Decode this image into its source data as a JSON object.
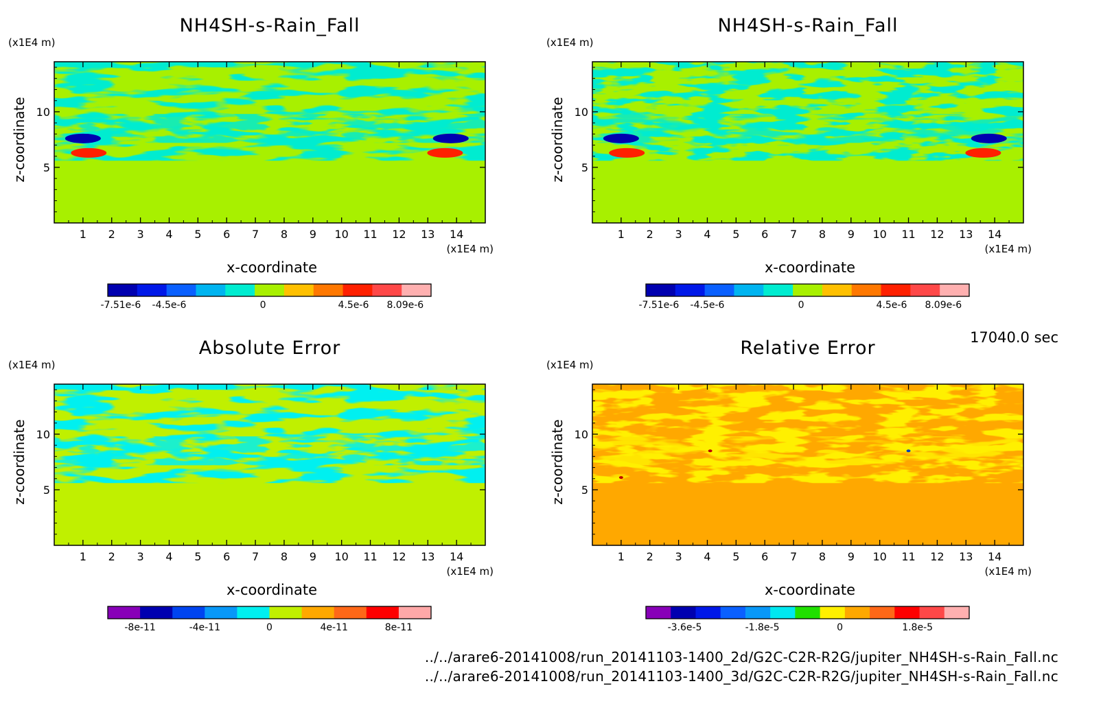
{
  "timestamp": "17040.0 sec",
  "files": [
    "../../arare6-20141008/run_20141103-1400_2d/G2C-C2R-R2G/jupiter_NH4SH-s-Rain_Fall.nc",
    "../../arare6-20141008/run_20141103-1400_3d/G2C-C2R-R2G/jupiter_NH4SH-s-Rain_Fall.nc"
  ],
  "chart_data": [
    {
      "type": "heatmap",
      "title": "NH4SH-s-Rain_Fall",
      "xlabel": "x-coordinate",
      "ylabel": "z-coordinate",
      "x_unit": "(x1E4 m)",
      "z_unit": "(x1E4 m)",
      "xlim": [
        0,
        15
      ],
      "zlim": [
        0,
        14.5
      ],
      "x_ticks": [
        "1",
        "2",
        "3",
        "4",
        "5",
        "6",
        "7",
        "8",
        "9",
        "10",
        "11",
        "12",
        "13",
        "14"
      ],
      "z_ticks": [
        "5",
        "10"
      ],
      "colorbar": {
        "colors": [
          "#0000b0",
          "#0018e8",
          "#0a60ff",
          "#00b4f0",
          "#00ecd0",
          "#a8f000",
          "#ffc000",
          "#ff7800",
          "#ff2000",
          "#ff4848",
          "#ffb0b0"
        ],
        "labels": [
          "-7.51e-6",
          "-4.5e-6",
          "0",
          "4.5e-6",
          "8.09e-6"
        ]
      },
      "field": {
        "background": "#a8f000",
        "bands": "#00ecd0",
        "features": [
          {
            "color": "#0000b0",
            "x": 1.0,
            "z": 7.6
          },
          {
            "color": "#ff2000",
            "x": 1.2,
            "z": 6.3
          },
          {
            "color": "#0000b0",
            "x": 13.8,
            "z": 7.6
          },
          {
            "color": "#ff2000",
            "x": 13.6,
            "z": 6.3
          }
        ]
      }
    },
    {
      "type": "heatmap",
      "title": "NH4SH-s-Rain_Fall",
      "xlabel": "x-coordinate",
      "ylabel": "z-coordinate",
      "x_unit": "(x1E4 m)",
      "z_unit": "(x1E4 m)",
      "xlim": [
        0,
        15
      ],
      "zlim": [
        0,
        14.5
      ],
      "x_ticks": [
        "1",
        "2",
        "3",
        "4",
        "5",
        "6",
        "7",
        "8",
        "9",
        "10",
        "11",
        "12",
        "13",
        "14"
      ],
      "z_ticks": [
        "5",
        "10"
      ],
      "colorbar": {
        "colors": [
          "#0000b0",
          "#0018e8",
          "#0a60ff",
          "#00b4f0",
          "#00ecd0",
          "#a8f000",
          "#ffc000",
          "#ff7800",
          "#ff2000",
          "#ff4848",
          "#ffb0b0"
        ],
        "labels": [
          "-7.51e-6",
          "-4.5e-6",
          "0",
          "4.5e-6",
          "8.09e-6"
        ]
      },
      "field": {
        "background": "#a8f000",
        "bands": "#00ecd0",
        "features": [
          {
            "color": "#0000b0",
            "x": 1.0,
            "z": 7.6
          },
          {
            "color": "#ff2000",
            "x": 1.2,
            "z": 6.3
          },
          {
            "color": "#0000b0",
            "x": 13.8,
            "z": 7.6
          },
          {
            "color": "#ff2000",
            "x": 13.6,
            "z": 6.3
          }
        ]
      }
    },
    {
      "type": "heatmap",
      "title": "Absolute Error",
      "xlabel": "x-coordinate",
      "ylabel": "z-coordinate",
      "x_unit": "(x1E4 m)",
      "z_unit": "(x1E4 m)",
      "xlim": [
        0,
        15
      ],
      "zlim": [
        0,
        14.5
      ],
      "x_ticks": [
        "1",
        "2",
        "3",
        "4",
        "5",
        "6",
        "7",
        "8",
        "9",
        "10",
        "11",
        "12",
        "13",
        "14"
      ],
      "z_ticks": [
        "5",
        "10"
      ],
      "colorbar": {
        "colors": [
          "#8800b8",
          "#0000b0",
          "#0044f0",
          "#0898f8",
          "#00f0f0",
          "#c0f000",
          "#ffa800",
          "#ff6818",
          "#ff0000",
          "#ffa8a8"
        ],
        "labels": [
          "-8e-11",
          "-4e-11",
          "0",
          "4e-11",
          "8e-11"
        ]
      },
      "field": {
        "background": "#c0f000",
        "bands": "#00f0f0",
        "features": []
      }
    },
    {
      "type": "heatmap",
      "title": "Relative Error",
      "xlabel": "x-coordinate",
      "ylabel": "z-coordinate",
      "x_unit": "(x1E4 m)",
      "z_unit": "(x1E4 m)",
      "xlim": [
        0,
        15
      ],
      "zlim": [
        0,
        14.5
      ],
      "x_ticks": [
        "1",
        "2",
        "3",
        "4",
        "5",
        "6",
        "7",
        "8",
        "9",
        "10",
        "11",
        "12",
        "13",
        "14"
      ],
      "z_ticks": [
        "5",
        "10"
      ],
      "colorbar": {
        "colors": [
          "#8800b8",
          "#0000b0",
          "#0018e8",
          "#0a60ff",
          "#0898f8",
          "#00e8f0",
          "#20e000",
          "#fff000",
          "#ffa800",
          "#ff6818",
          "#ff0000",
          "#ff4848",
          "#ffb0b0"
        ],
        "labels": [
          "-3.6e-5",
          "-1.8e-5",
          "0",
          "1.8e-5"
        ]
      },
      "field": {
        "background": "#ffa800",
        "bands": "#fff000",
        "features": [
          {
            "color": "#c00000",
            "x": 4.1,
            "z": 8.5
          },
          {
            "color": "#0040c0",
            "x": 11.0,
            "z": 8.5
          },
          {
            "color": "#c00000",
            "x": 1.0,
            "z": 6.1
          }
        ]
      }
    }
  ]
}
